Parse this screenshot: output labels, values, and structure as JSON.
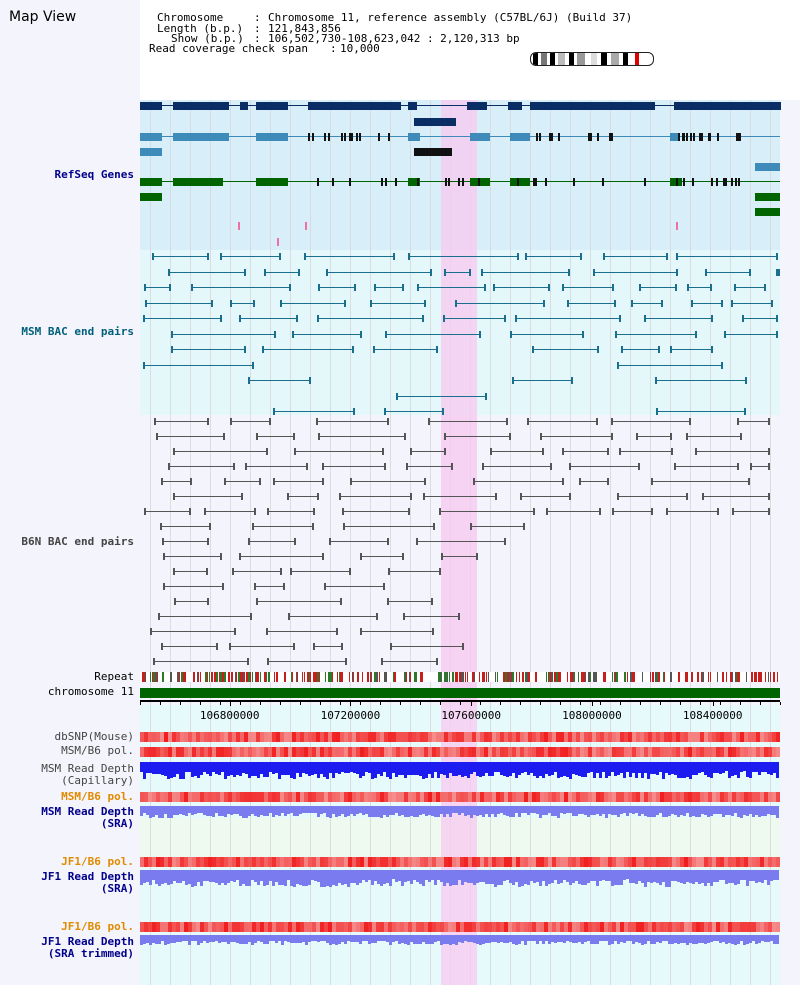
{
  "page": {
    "title": "Map View"
  },
  "info": {
    "chromosome_label": "Chromosome",
    "chromosome_value": "Chromosome 11, reference assembly (C57BL/6J) (Build 37)",
    "length_label": "Length (b.p.)",
    "length_value": "121,843,856",
    "show_label": "Show (b.p.)",
    "show_value": "106,502,730-108,623,042 : 2,120,313 bp",
    "coverage_label": "Read coverage check span",
    "coverage_value": "10,000",
    "separator": ":"
  },
  "tracks": {
    "refseq": "RefSeq Genes",
    "msm_bac": "MSM BAC end pairs",
    "b6n_bac": "B6N BAC end pairs",
    "repeat": "Repeat",
    "chromosome": "chromosome 11",
    "dbsnp": "dbSNP(Mouse)",
    "msm_b6_pol": "MSM/B6 pol.",
    "msm_read_depth_cap": "MSM Read Depth\n(Capillary)",
    "msm_b6_pol_sra": "MSM/B6 pol.",
    "msm_read_depth_sra": "MSM Read Depth\n(SRA)",
    "jf1_b6_pol": "JF1/B6 pol.",
    "jf1_read_depth_sra": "JF1 Read Depth\n(SRA)",
    "jf1_b6_pol_trim": "JF1/B6 pol.",
    "jf1_read_depth_trim": "JF1 Read Depth\n(SRA trimmed)"
  },
  "axis": {
    "ticks": [
      "106800000",
      "107200000",
      "107600000",
      "108000000",
      "108400000"
    ],
    "tick_values": [
      106800000,
      107200000,
      107600000,
      108000000,
      108400000
    ],
    "range": [
      106502730,
      108623042
    ]
  },
  "highlight": {
    "start": 107500000,
    "end": 107620000
  },
  "colors": {
    "refseq_bg": "#d8eef8",
    "msm_bg": "#e4f8fb",
    "b6n_bg": "#f4f4fc",
    "highlight": "#f8c8f0",
    "gene_dark": "#0a2d66",
    "gene_mid": "#3e8ab8",
    "gene_green": "#006400",
    "msm_pair": "#1a6e8e",
    "b6n_pair": "#555555",
    "label_blue": "#00008b",
    "label_teal": "#00607a",
    "label_gray": "#444444",
    "label_orange": "#e08a00",
    "label_black": "#000000",
    "depth_blue": "#1c1cf0",
    "depth_light": "#7b7bf0",
    "pol_red": "#f04040",
    "ideogram_marker": "#e00000"
  }
}
